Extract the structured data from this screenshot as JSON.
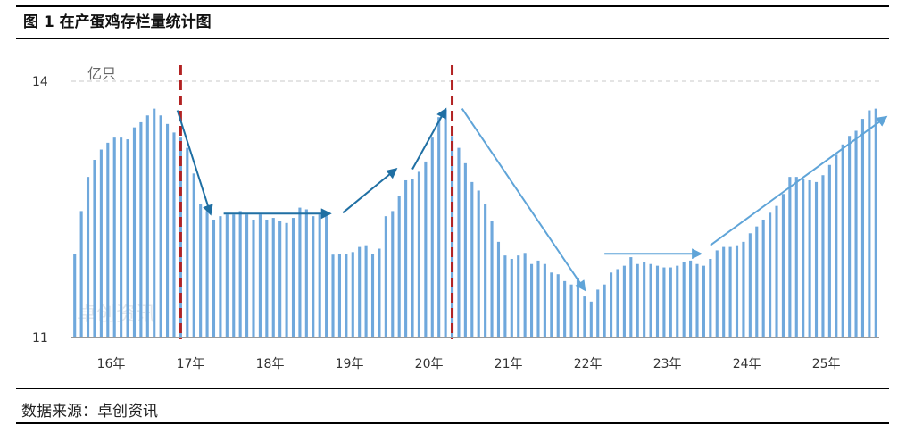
{
  "figure": {
    "title": "图 1 在产蛋鸡存栏量统计图",
    "source": "数据来源：卓创资讯",
    "watermark": "卓创资讯"
  },
  "colors": {
    "bar": "#6fa8dc",
    "arrow_dark": "#1f6fa3",
    "arrow_light": "#5fa4d8",
    "divider": "#b22222",
    "gridline": "#c8c8c8",
    "axis": "#999999"
  },
  "chart_data": {
    "type": "bar",
    "title": "在产蛋鸡存栏量统计图",
    "unit_label": "亿只",
    "ylim": [
      11,
      14
    ],
    "yticks": [
      11,
      14
    ],
    "xticks": [
      "16年",
      "17年",
      "18年",
      "19年",
      "20年",
      "21年",
      "22年",
      "23年",
      "24年",
      "25年"
    ],
    "grid": "horizontal dashed line at 14",
    "values": [
      11.98,
      12.48,
      12.88,
      13.08,
      13.2,
      13.28,
      13.34,
      13.34,
      13.32,
      13.46,
      13.52,
      13.6,
      13.68,
      13.6,
      13.5,
      13.4,
      13.34,
      13.22,
      12.92,
      12.56,
      12.48,
      12.38,
      12.42,
      12.44,
      12.44,
      12.48,
      12.44,
      12.38,
      12.44,
      12.38,
      12.4,
      12.36,
      12.34,
      12.4,
      12.52,
      12.5,
      12.42,
      12.44,
      12.42,
      11.97,
      11.98,
      11.98,
      12.0,
      12.06,
      12.08,
      11.98,
      12.04,
      12.42,
      12.48,
      12.66,
      12.84,
      12.86,
      12.94,
      13.06,
      13.34,
      13.58,
      13.67,
      13.36,
      13.22,
      13.04,
      12.82,
      12.72,
      12.56,
      12.36,
      12.12,
      11.96,
      11.92,
      11.96,
      11.99,
      11.86,
      11.9,
      11.86,
      11.76,
      11.74,
      11.66,
      11.62,
      11.7,
      11.48,
      11.42,
      11.56,
      11.62,
      11.76,
      11.8,
      11.84,
      11.94,
      11.86,
      11.88,
      11.86,
      11.84,
      11.82,
      11.82,
      11.84,
      11.88,
      11.9,
      11.86,
      11.84,
      11.92,
      12.02,
      12.06,
      12.06,
      12.08,
      12.12,
      12.22,
      12.3,
      12.38,
      12.46,
      12.54,
      12.68,
      12.88,
      12.88,
      12.86,
      12.84,
      12.82,
      12.9,
      13.02,
      13.14,
      13.26,
      13.36,
      13.42,
      13.56,
      13.66,
      13.68
    ],
    "annotations": [
      {
        "type": "divider",
        "x_index": 16,
        "color": "#b22222"
      },
      {
        "type": "divider",
        "x_index": 57,
        "color": "#b22222"
      },
      {
        "type": "arrow",
        "from": [
          15.5,
          13.66
        ],
        "to": [
          20.5,
          12.45
        ],
        "color": "#1f6fa3"
      },
      {
        "type": "arrow",
        "from": [
          22.5,
          12.45
        ],
        "to": [
          38.5,
          12.45
        ],
        "color": "#1f6fa3"
      },
      {
        "type": "arrow",
        "from": [
          40.5,
          12.46
        ],
        "to": [
          48.5,
          12.97
        ],
        "color": "#1f6fa3"
      },
      {
        "type": "arrow",
        "from": [
          51.0,
          12.97
        ],
        "to": [
          56.0,
          13.67
        ],
        "color": "#1f6fa3"
      },
      {
        "type": "arrow",
        "from": [
          58.5,
          13.68
        ],
        "to": [
          77.0,
          11.56
        ],
        "color": "#5fa4d8"
      },
      {
        "type": "arrow",
        "from": [
          80.0,
          11.98
        ],
        "to": [
          94.5,
          11.98
        ],
        "color": "#5fa4d8"
      },
      {
        "type": "arrow",
        "from": [
          96.0,
          12.08
        ],
        "to": [
          122.5,
          13.58
        ],
        "color": "#5fa4d8"
      }
    ]
  }
}
